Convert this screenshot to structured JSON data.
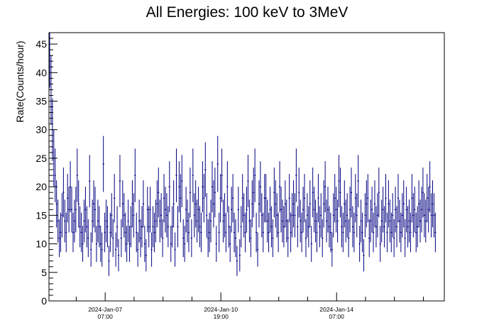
{
  "chart_data": {
    "type": "scatter",
    "style": "error-bar histogram",
    "title": "All Energies:  100 keV to 3MeV",
    "xlabel": "",
    "ylabel": "Rate(Counts/hour)",
    "ylim": [
      0,
      47
    ],
    "yticks": [
      0,
      5,
      10,
      15,
      20,
      25,
      30,
      35,
      40,
      45
    ],
    "xlim_hours": [
      0,
      287
    ],
    "xtick_labels": [
      {
        "hours_from_start": 40.8,
        "date": "2024-Jan-07",
        "time": "07:00"
      },
      {
        "hours_from_start": 124.8,
        "date": "2024-Jan-10",
        "time": "19:00"
      },
      {
        "hours_from_start": 208.8,
        "date": "2024-Jan-14",
        "time": "07:00"
      }
    ],
    "grid": false,
    "marker_color": "#000080",
    "series": [
      {
        "bin_width_hours": 1,
        "values": [
          44,
          37,
          30,
          25,
          22,
          17,
          14,
          11,
          12,
          15,
          19,
          14,
          12,
          18,
          16,
          20,
          16,
          12,
          14,
          16,
          22,
          17,
          13,
          12,
          10,
          14,
          16,
          13,
          11,
          21,
          9,
          14,
          17,
          16,
          10,
          14,
          13,
          10,
          9,
          24,
          12,
          14,
          13,
          7,
          12,
          15,
          11,
          18,
          9,
          13,
          8,
          21,
          11,
          17,
          15,
          12,
          10,
          14,
          10,
          13,
          17,
          15,
          22,
          12,
          9,
          14,
          11,
          13,
          17,
          10,
          8,
          16,
          13,
          16,
          9,
          13,
          12,
          14,
          17,
          19,
          14,
          15,
          11,
          18,
          16,
          15,
          13,
          20,
          10,
          13,
          17,
          9,
          22,
          13,
          20,
          18,
          21,
          11,
          10,
          16,
          14,
          12,
          19,
          11,
          22,
          15,
          17,
          14,
          16,
          13,
          12,
          20,
          18,
          23,
          15,
          11,
          12,
          14,
          20,
          17,
          19,
          10,
          24,
          12,
          18,
          22,
          14,
          15,
          12,
          20,
          13,
          10,
          16,
          18,
          12,
          11,
          7,
          16,
          8,
          13,
          18,
          15,
          12,
          16,
          21,
          14,
          11,
          17,
          19,
          22,
          12,
          9,
          17,
          20,
          15,
          12,
          18,
          18,
          14,
          12,
          16,
          13,
          11,
          19,
          17,
          15,
          12,
          20,
          16,
          14,
          13,
          17,
          14,
          11,
          18,
          12,
          15,
          17,
          15,
          22,
          13,
          19,
          14,
          12,
          16,
          18,
          11,
          15,
          13,
          17,
          10,
          19,
          16,
          14,
          12,
          18,
          13,
          15,
          11,
          17,
          20,
          14,
          16,
          13,
          12,
          9,
          15,
          18,
          16,
          14,
          21,
          19,
          13,
          12,
          17,
          14,
          15,
          11,
          16,
          19,
          13,
          12,
          18,
          15,
          21,
          10,
          14,
          12,
          8,
          15,
          17,
          18,
          11,
          14,
          16,
          12,
          17,
          13,
          15,
          19,
          10,
          14,
          16,
          13,
          18,
          12,
          17,
          14,
          12,
          15,
          11,
          16,
          13,
          18,
          14,
          12,
          15,
          17,
          11,
          16,
          13,
          14,
          12,
          18,
          15,
          16,
          12,
          13,
          17,
          14,
          16,
          19,
          15,
          14,
          18,
          16,
          20,
          15,
          17,
          15,
          12
        ]
      }
    ]
  }
}
